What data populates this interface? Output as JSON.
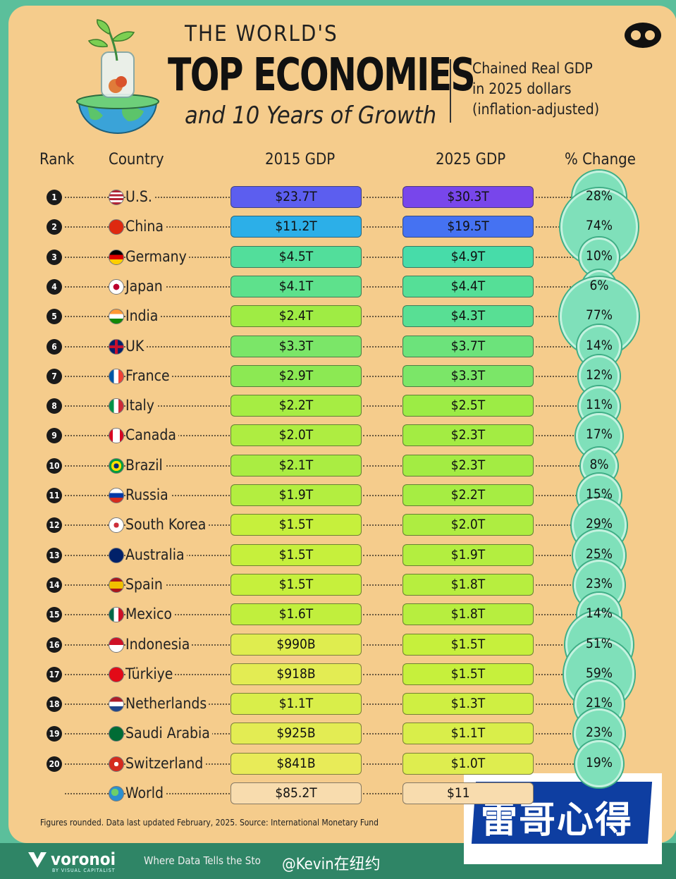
{
  "title": {
    "line1": "THE WORLD'S",
    "line2": "TOP ECONOMIES",
    "line3": "and 10 Years of Growth"
  },
  "subtitle": [
    "Chained Real GDP",
    "in 2025 dollars",
    "(inflation-adjusted)"
  ],
  "headers": {
    "rank": "Rank",
    "country": "Country",
    "gdp2015": "2015 GDP",
    "gdp2025": "2025 GDP",
    "change": "% Change"
  },
  "chart_data": {
    "type": "table",
    "columns": [
      "Rank",
      "Country",
      "2015 GDP",
      "2025 GDP",
      "% Change"
    ],
    "rows": [
      {
        "rank": "1",
        "country": "U.S.",
        "gdp2015": "$23.7T",
        "gdp2025": "$30.3T",
        "change": "28%",
        "v15": 23.7,
        "v25": 30.3,
        "pct": 28,
        "flag": "us-flag"
      },
      {
        "rank": "2",
        "country": "China",
        "gdp2015": "$11.2T",
        "gdp2025": "$19.5T",
        "change": "74%",
        "v15": 11.2,
        "v25": 19.5,
        "pct": 74,
        "flag": "cn-flag"
      },
      {
        "rank": "3",
        "country": "Germany",
        "gdp2015": "$4.5T",
        "gdp2025": "$4.9T",
        "change": "10%",
        "v15": 4.5,
        "v25": 4.9,
        "pct": 10,
        "flag": "de-flag"
      },
      {
        "rank": "4",
        "country": "Japan",
        "gdp2015": "$4.1T",
        "gdp2025": "$4.4T",
        "change": "6%",
        "v15": 4.1,
        "v25": 4.4,
        "pct": 6,
        "flag": "jp-flag"
      },
      {
        "rank": "5",
        "country": "India",
        "gdp2015": "$2.4T",
        "gdp2025": "$4.3T",
        "change": "77%",
        "v15": 2.4,
        "v25": 4.3,
        "pct": 77,
        "flag": "in-flag"
      },
      {
        "rank": "6",
        "country": "UK",
        "gdp2015": "$3.3T",
        "gdp2025": "$3.7T",
        "change": "14%",
        "v15": 3.3,
        "v25": 3.7,
        "pct": 14,
        "flag": "uk-flag"
      },
      {
        "rank": "7",
        "country": "France",
        "gdp2015": "$2.9T",
        "gdp2025": "$3.3T",
        "change": "12%",
        "v15": 2.9,
        "v25": 3.3,
        "pct": 12,
        "flag": "fr-flag"
      },
      {
        "rank": "8",
        "country": "Italy",
        "gdp2015": "$2.2T",
        "gdp2025": "$2.5T",
        "change": "11%",
        "v15": 2.2,
        "v25": 2.5,
        "pct": 11,
        "flag": "it-flag"
      },
      {
        "rank": "9",
        "country": "Canada",
        "gdp2015": "$2.0T",
        "gdp2025": "$2.3T",
        "change": "17%",
        "v15": 2.0,
        "v25": 2.3,
        "pct": 17,
        "flag": "ca-flag"
      },
      {
        "rank": "10",
        "country": "Brazil",
        "gdp2015": "$2.1T",
        "gdp2025": "$2.3T",
        "change": "8%",
        "v15": 2.1,
        "v25": 2.3,
        "pct": 8,
        "flag": "br-flag"
      },
      {
        "rank": "11",
        "country": "Russia",
        "gdp2015": "$1.9T",
        "gdp2025": "$2.2T",
        "change": "15%",
        "v15": 1.9,
        "v25": 2.2,
        "pct": 15,
        "flag": "ru-flag"
      },
      {
        "rank": "12",
        "country": "South Korea",
        "gdp2015": "$1.5T",
        "gdp2025": "$2.0T",
        "change": "29%",
        "v15": 1.5,
        "v25": 2.0,
        "pct": 29,
        "flag": "kr-flag"
      },
      {
        "rank": "13",
        "country": "Australia",
        "gdp2015": "$1.5T",
        "gdp2025": "$1.9T",
        "change": "25%",
        "v15": 1.5,
        "v25": 1.9,
        "pct": 25,
        "flag": "au-flag"
      },
      {
        "rank": "14",
        "country": "Spain",
        "gdp2015": "$1.5T",
        "gdp2025": "$1.8T",
        "change": "23%",
        "v15": 1.5,
        "v25": 1.8,
        "pct": 23,
        "flag": "es-flag"
      },
      {
        "rank": "15",
        "country": "Mexico",
        "gdp2015": "$1.6T",
        "gdp2025": "$1.8T",
        "change": "14%",
        "v15": 1.6,
        "v25": 1.8,
        "pct": 14,
        "flag": "mx-flag"
      },
      {
        "rank": "16",
        "country": "Indonesia",
        "gdp2015": "$990B",
        "gdp2025": "$1.5T",
        "change": "51%",
        "v15": 0.99,
        "v25": 1.5,
        "pct": 51,
        "flag": "id-flag"
      },
      {
        "rank": "17",
        "country": "Türkiye",
        "gdp2015": "$918B",
        "gdp2025": "$1.5T",
        "change": "59%",
        "v15": 0.918,
        "v25": 1.5,
        "pct": 59,
        "flag": "tr-flag"
      },
      {
        "rank": "18",
        "country": "Netherlands",
        "gdp2015": "$1.1T",
        "gdp2025": "$1.3T",
        "change": "21%",
        "v15": 1.1,
        "v25": 1.3,
        "pct": 21,
        "flag": "nl-flag"
      },
      {
        "rank": "19",
        "country": "Saudi Arabia",
        "gdp2015": "$925B",
        "gdp2025": "$1.1T",
        "change": "23%",
        "v15": 0.925,
        "v25": 1.1,
        "pct": 23,
        "flag": "sa-flag"
      },
      {
        "rank": "20",
        "country": "Switzerland",
        "gdp2015": "$841B",
        "gdp2025": "$1.0T",
        "change": "19%",
        "v15": 0.841,
        "v25": 1.0,
        "pct": 19,
        "flag": "ch-flag"
      }
    ],
    "world": {
      "country": "World",
      "gdp2015": "$85.2T",
      "gdp2025": "$11"
    }
  },
  "footnote": "Figures rounded. Data last updated February, 2025. Source: International Monetary Fund",
  "footer": {
    "brand": "voronoi",
    "brand_sub": "BY VISUAL CAPITALIST",
    "tagline": "Where Data Tells the Sto"
  },
  "watermark": {
    "badge": "雷哥心得",
    "weibo": "@Kevin在纽约"
  }
}
